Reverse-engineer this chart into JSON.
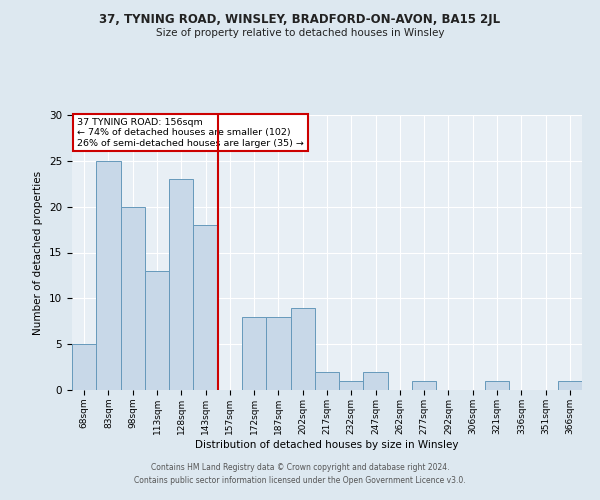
{
  "title": "37, TYNING ROAD, WINSLEY, BRADFORD-ON-AVON, BA15 2JL",
  "subtitle": "Size of property relative to detached houses in Winsley",
  "xlabel": "Distribution of detached houses by size in Winsley",
  "ylabel": "Number of detached properties",
  "bar_labels": [
    "68sqm",
    "83sqm",
    "98sqm",
    "113sqm",
    "128sqm",
    "143sqm",
    "157sqm",
    "172sqm",
    "187sqm",
    "202sqm",
    "217sqm",
    "232sqm",
    "247sqm",
    "262sqm",
    "277sqm",
    "292sqm",
    "306sqm",
    "321sqm",
    "336sqm",
    "351sqm",
    "366sqm"
  ],
  "bar_values": [
    5,
    25,
    20,
    13,
    23,
    18,
    0,
    8,
    8,
    9,
    2,
    1,
    2,
    0,
    1,
    0,
    0,
    1,
    0,
    0,
    1
  ],
  "bar_color": "#c8d8e8",
  "bar_edge_color": "#6699bb",
  "vline_x_index": 6,
  "vline_color": "#cc0000",
  "annotation_text": "37 TYNING ROAD: 156sqm\n← 74% of detached houses are smaller (102)\n26% of semi-detached houses are larger (35) →",
  "annotation_box_edge": "#cc0000",
  "ylim": [
    0,
    30
  ],
  "yticks": [
    0,
    5,
    10,
    15,
    20,
    25,
    30
  ],
  "background_color": "#dde8f0",
  "plot_background": "#e8eff5",
  "grid_color": "#ffffff",
  "footer_line1": "Contains HM Land Registry data © Crown copyright and database right 2024.",
  "footer_line2": "Contains public sector information licensed under the Open Government Licence v3.0."
}
